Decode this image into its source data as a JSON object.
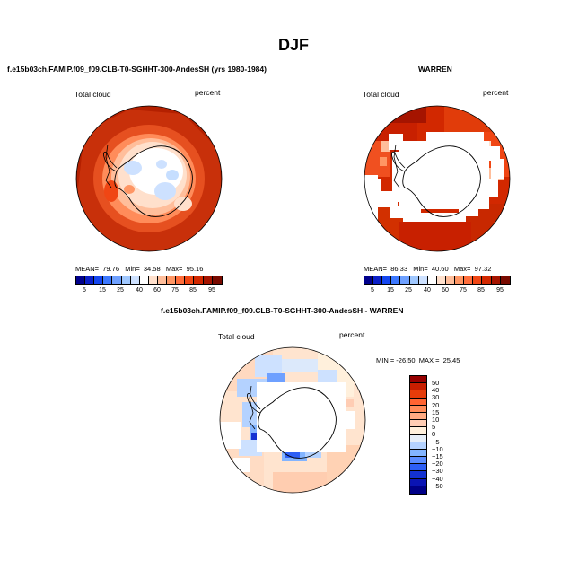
{
  "figure": {
    "season": "DJF",
    "panel1": {
      "title": "f.e15b03ch.FAMIP.f09_f09.CLB-T0-SGHHT-300-AndesSH (yrs 1980-1984)",
      "variable": "Total cloud",
      "units": "percent",
      "stats": "MEAN=  79.76   Min=  34.58   Max=  95.16"
    },
    "panel2": {
      "title": "WARREN",
      "variable": "Total cloud",
      "units": "percent",
      "stats": "MEAN=  86.33   Min=  40.60   Max=  97.32"
    },
    "panel3": {
      "title": "f.e15b03ch.FAMIP.f09_f09.CLB-T0-SGHHT-300-AndesSH - WARREN",
      "variable": "Total cloud",
      "units": "percent",
      "stats": "MIN = -26.50  MAX =  25.45"
    },
    "colorbar_abs": {
      "labels": [
        "5",
        "15",
        "25",
        "40",
        "60",
        "75",
        "85",
        "95"
      ],
      "colors": [
        "#00008c",
        "#0a1fc8",
        "#1446f0",
        "#3c78ff",
        "#6ea0ff",
        "#a0c8ff",
        "#cde1ff",
        "#ffffff",
        "#ffe0cc",
        "#ffbe9b",
        "#ff9664",
        "#ff6e3c",
        "#f04614",
        "#d22800",
        "#a51400",
        "#780a00"
      ]
    },
    "colorbar_diff": {
      "labels": [
        "50",
        "40",
        "30",
        "20",
        "15",
        "10",
        "5",
        "0",
        "−5",
        "−10",
        "−15",
        "−20",
        "−30",
        "−40",
        "−50"
      ],
      "colors": [
        "#960000",
        "#c81e00",
        "#e63c0a",
        "#ff6432",
        "#ff8c5a",
        "#ffaa82",
        "#ffcdb4",
        "#fff0dc",
        "#e6eef8",
        "#b4d2ff",
        "#82b4ff",
        "#5a8cff",
        "#2d5ff5",
        "#1432d2",
        "#0a14b4",
        "#000087"
      ]
    }
  }
}
